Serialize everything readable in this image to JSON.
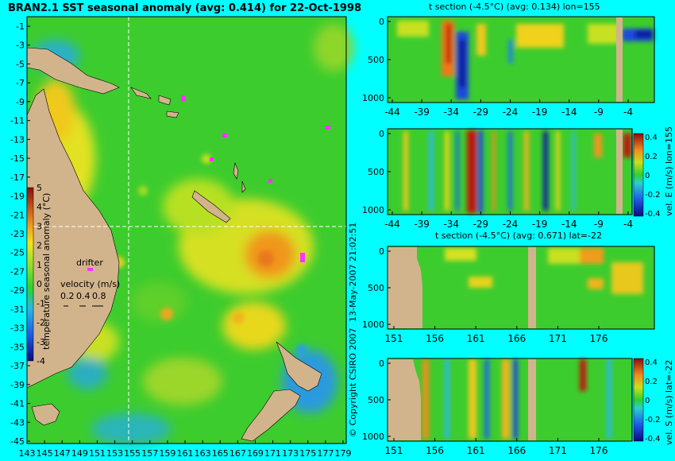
{
  "main_map": {
    "title": "BRAN2.1 SST seasonal anomaly (avg: 0.414) for 22-Oct-1998",
    "y_ticks": [
      "-1",
      "-3",
      "-5",
      "-7",
      "-9",
      "-11",
      "-13",
      "-15",
      "-17",
      "-19",
      "-21",
      "-23",
      "-25",
      "-27",
      "-29",
      "-31",
      "-33",
      "-35",
      "-37",
      "-39",
      "-41",
      "-43",
      "-45"
    ],
    "x_ticks": [
      "143",
      "145",
      "147",
      "149",
      "151",
      "153",
      "155",
      "157",
      "159",
      "161",
      "163",
      "165",
      "167",
      "169",
      "171",
      "173",
      "175",
      "177",
      "179"
    ],
    "colorbar_label": "temperature seasonal anomaly (°C)",
    "colorbar_ticks": [
      "5",
      "4",
      "3",
      "2",
      "1",
      "0",
      "-1",
      "-2",
      "-3",
      "-4"
    ],
    "drifter_label": "drifter",
    "velocity_label": "velocity (m/s)",
    "velocity_values": [
      "0.2",
      "0.4",
      "0.8"
    ]
  },
  "panels": [
    {
      "id": "p1",
      "title": "t section (-4.5°C) (avg: 0.134) lon=155",
      "x_ticks": [
        "-44",
        "-39",
        "-34",
        "-29",
        "-24",
        "-19",
        "-14",
        "-9",
        "-4"
      ],
      "y_ticks": [
        "0",
        "500",
        "1000"
      ]
    },
    {
      "id": "p2",
      "title": "",
      "x_ticks": [
        "-44",
        "-39",
        "-34",
        "-29",
        "-24",
        "-19",
        "-14",
        "-9",
        "-4"
      ],
      "y_ticks": [
        "0",
        "500",
        "1000"
      ],
      "colorbar_label": "vel. E (m/s) lon=155",
      "colorbar_ticks": [
        "0.4",
        "0.2",
        "0",
        "-0.2",
        "-0.4"
      ]
    },
    {
      "id": "p3",
      "title": "t section (-4.5°C) (avg: 0.671) lat=-22",
      "x_ticks": [
        "151",
        "156",
        "161",
        "166",
        "171",
        "176"
      ],
      "y_ticks": [
        "0",
        "500",
        "1000"
      ]
    },
    {
      "id": "p4",
      "title": "",
      "x_ticks": [
        "151",
        "156",
        "161",
        "166",
        "171",
        "176"
      ],
      "y_ticks": [
        "0",
        "500",
        "1000"
      ],
      "colorbar_label": "vel. S (m/s) lat=-22",
      "colorbar_ticks": [
        "0.4",
        "0.2",
        "0",
        "-0.2",
        "-0.4"
      ]
    }
  ],
  "side_text": {
    "timestamp": "13-May-2007 21:02:51",
    "copyright": "© Copyright CSIRO 2007"
  },
  "colors": {
    "background": "#00FFFF",
    "land": "#D2B48C",
    "field_green": "#33CC33",
    "warm_yellow": "#F5E21C",
    "warm_orange": "#F08C1E",
    "hot_red": "#C0180C",
    "cool_blue": "#1E6AE6",
    "deep_blue": "#0A1E9C",
    "drifter_magenta": "#FF33FF"
  },
  "chart_data": [
    {
      "type": "heatmap",
      "title": "BRAN2.1 SST seasonal anomaly (avg: 0.414) for 22-Oct-1998",
      "xlabel": "",
      "ylabel": "",
      "xlim": [
        143,
        179
      ],
      "ylim": [
        -45,
        -1
      ],
      "clim": [
        -4,
        5
      ],
      "colorbar_label": "temperature seasonal anomaly (°C)",
      "mean": 0.414
    },
    {
      "type": "heatmap",
      "title": "t section (-4.5°C) (avg: 0.134) lon=155",
      "x_range": [
        -44,
        -4
      ],
      "y_range": [
        0,
        1000
      ],
      "mean": 0.134
    },
    {
      "type": "heatmap",
      "colorbar_label": "vel. E (m/s) lon=155",
      "x_range": [
        -44,
        -4
      ],
      "y_range": [
        0,
        1000
      ],
      "clim": [
        -0.4,
        0.4
      ]
    },
    {
      "type": "heatmap",
      "title": "t section (-4.5°C) (avg: 0.671) lat=-22",
      "x_range": [
        151,
        176
      ],
      "y_range": [
        0,
        1000
      ],
      "mean": 0.671
    },
    {
      "type": "heatmap",
      "colorbar_label": "vel. S (m/s) lat=-22",
      "x_range": [
        151,
        176
      ],
      "y_range": [
        0,
        1000
      ],
      "clim": [
        -0.4,
        0.4
      ]
    }
  ]
}
